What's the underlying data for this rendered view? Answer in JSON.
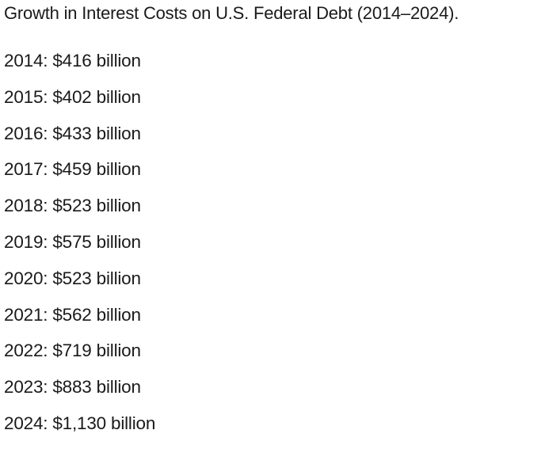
{
  "title": "Growth in Interest Costs on U.S. Federal Debt (2014–2024).",
  "items": [
    "2014: $416 billion",
    "2015: $402 billion",
    "2016: $433 billion",
    "2017: $459 billion",
    "2018: $523 billion",
    "2019: $575 billion",
    "2020: $523 billion",
    "2021: $562 billion",
    "2022: $719 billion",
    "2023: $883 billion",
    "2024: $1,130 billion"
  ]
}
